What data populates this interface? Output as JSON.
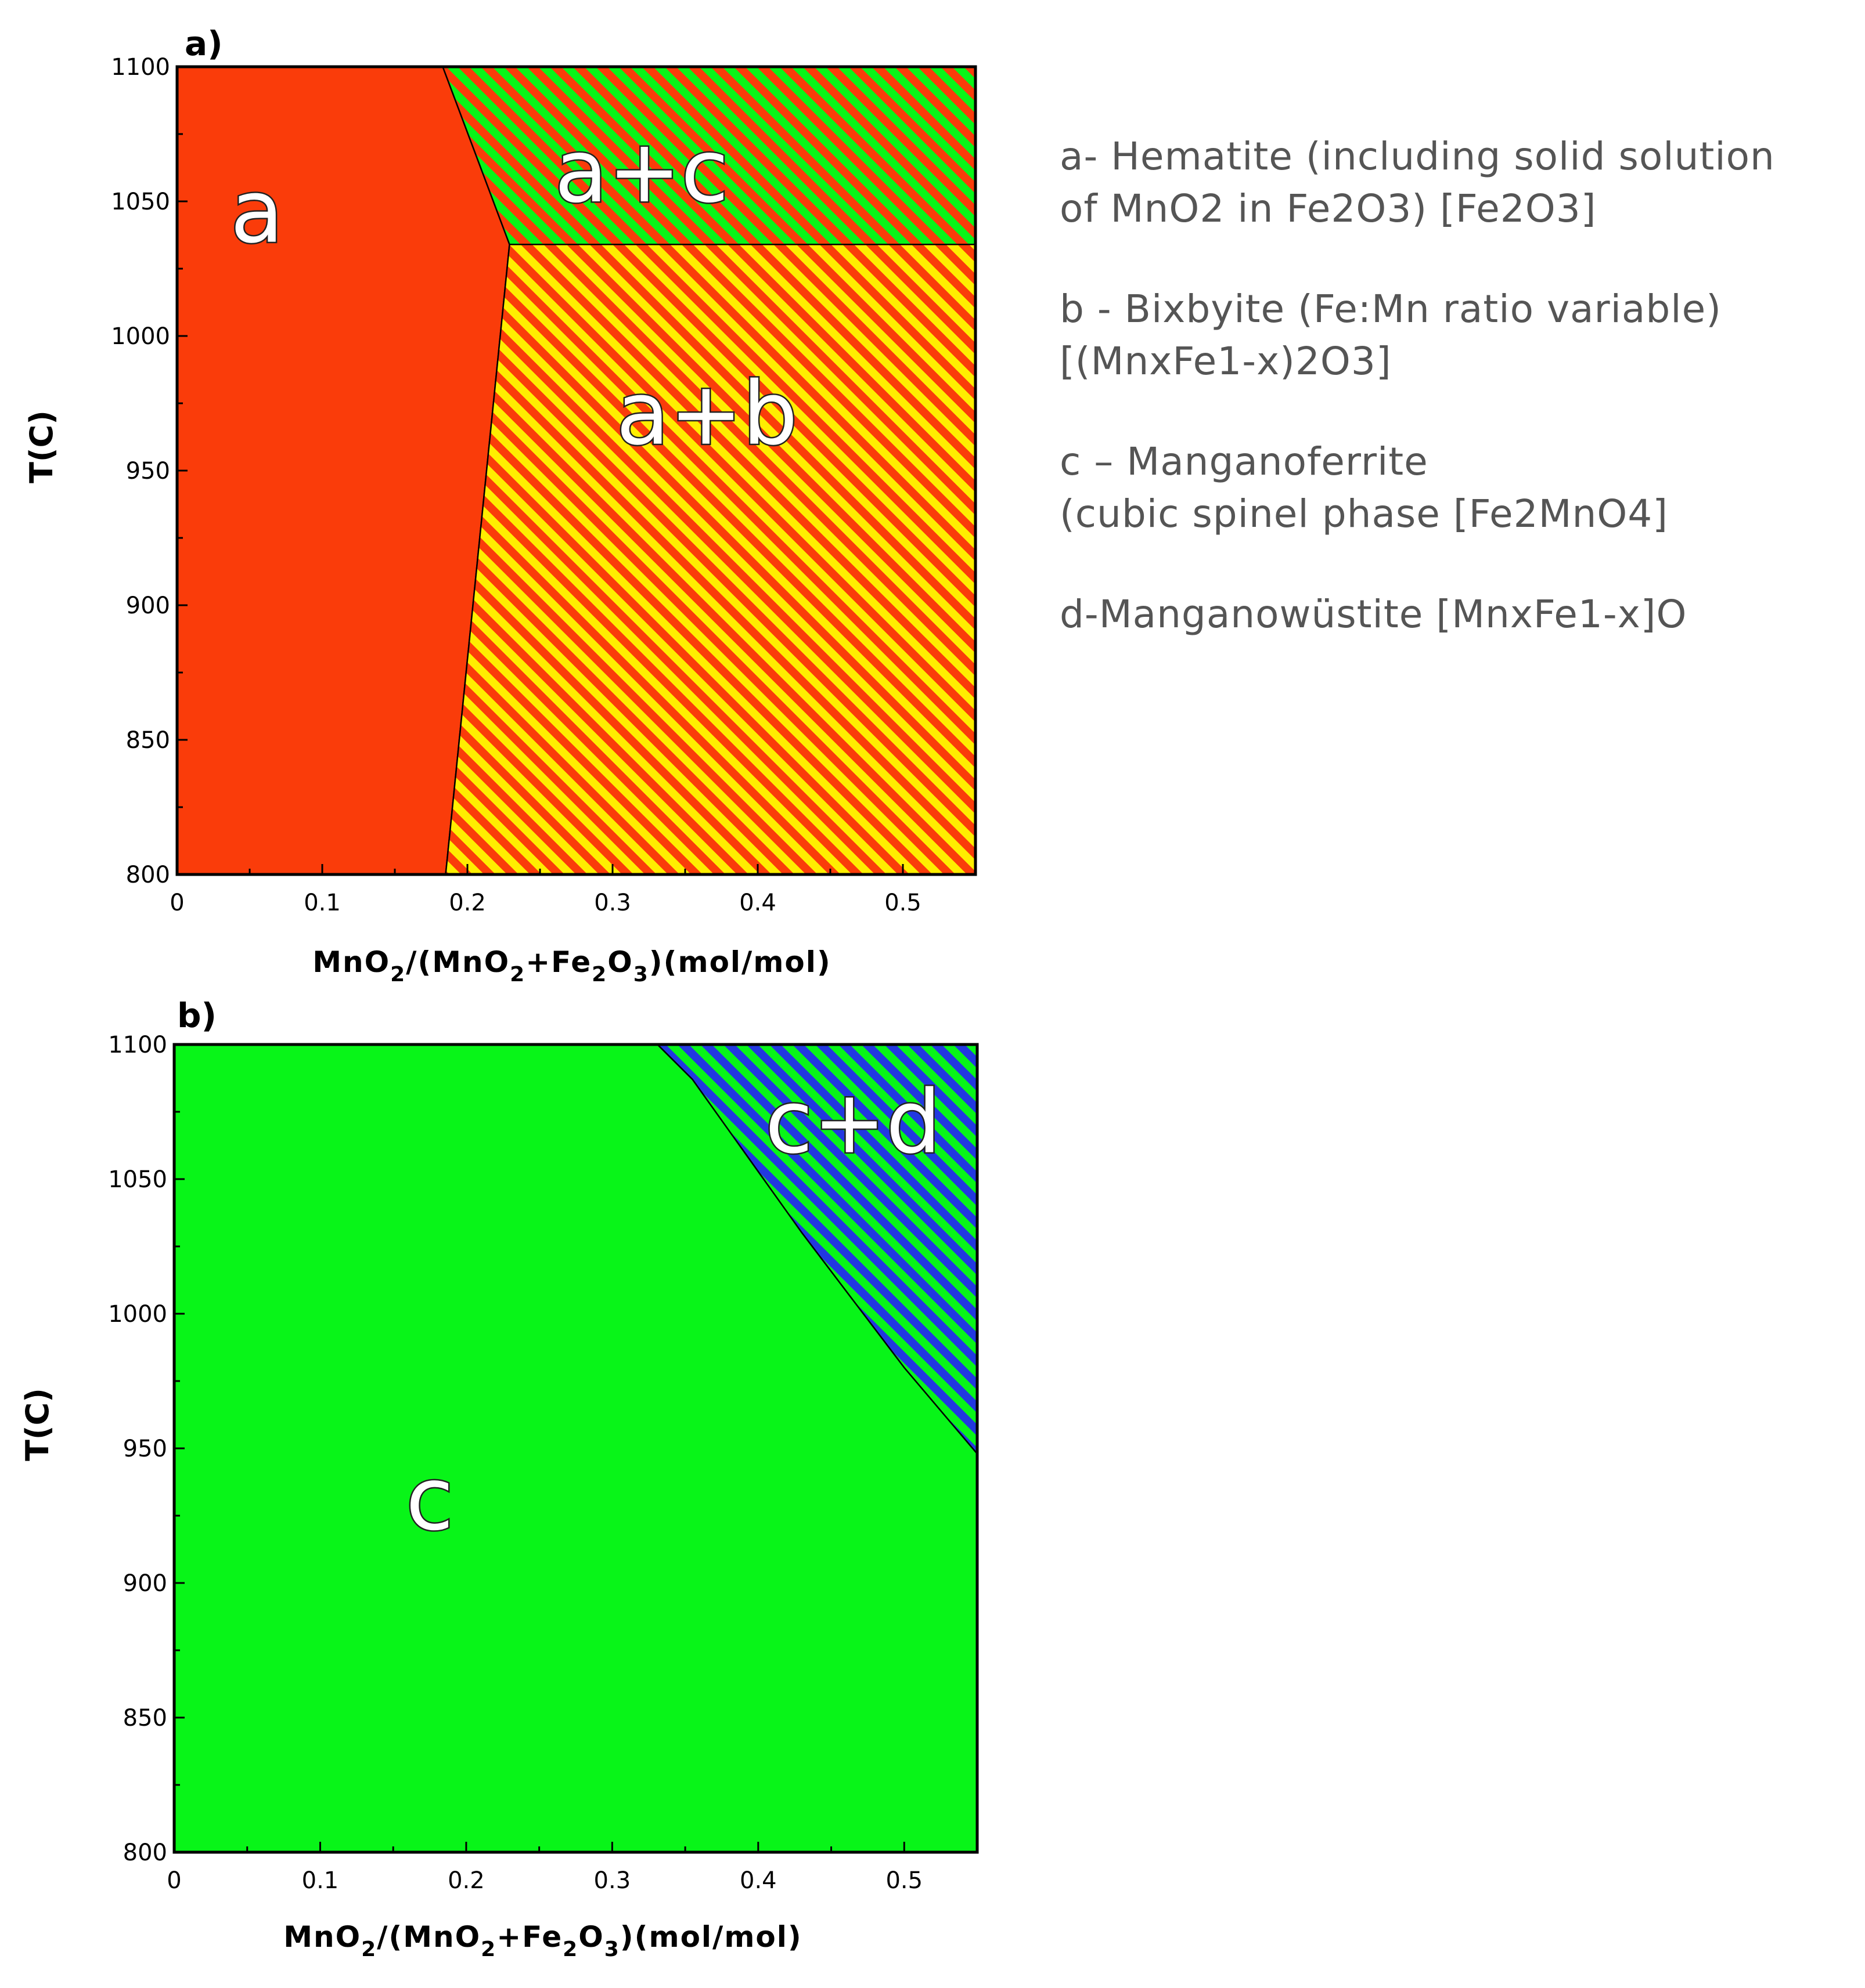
{
  "legend": {
    "a_line1": "a- Hematite  (including solid solution",
    "a_line2": "of MnO2 in Fe2O3) [Fe2O3]",
    "b_line1": "b - Bixbyite (Fe:Mn ratio variable)",
    "b_line2": "[(MnxFe1-x)2O3]",
    "c_line1": "c – Manganoferrite",
    "c_line2": "(cubic spinel phase [Fe2MnO4]",
    "d_line1": "d-Manganowüstite [MnxFe1-x]O"
  },
  "colors": {
    "phase_a": "#fa3c0a",
    "yellow": "#ffee00",
    "green": "#08f518",
    "blue": "#2238e0",
    "axis": "#000000",
    "label_fill": "#ffffff",
    "label_stroke": "#222222"
  },
  "chart_data": [
    {
      "type": "area",
      "panel_label": "a)",
      "xlabel": "MnO2/(MnO2+Fe2O3)(mol/mol)",
      "xlabel_parts": {
        "p1": "MnO",
        "s1": "2",
        "p2": "/(MnO",
        "s2": "2",
        "p3": "+Fe",
        "s3": "2",
        "p4": "O",
        "s4": "3",
        "p5": ")(mol/mol)"
      },
      "ylabel": "T(C)",
      "xlim": [
        0,
        0.55
      ],
      "ylim": [
        800,
        1100
      ],
      "xticks": [
        0,
        0.1,
        0.2,
        0.3,
        0.4,
        0.5
      ],
      "xtick_labels": [
        "0",
        "0.1",
        "0.2",
        "0.3",
        "0.4",
        "0.5"
      ],
      "yticks": [
        800,
        850,
        900,
        950,
        1000,
        1050,
        1100
      ],
      "ytick_labels": [
        "800",
        "850",
        "900",
        "950",
        "1000",
        "1050",
        "1100"
      ],
      "regions": [
        {
          "label": "a",
          "fill": "solid",
          "colors": [
            "#fa3c0a"
          ],
          "polygon": [
            [
              0,
              800
            ],
            [
              0,
              1100
            ],
            [
              0.183,
              1100
            ],
            [
              0.229,
              1034
            ],
            [
              0.185,
              800
            ]
          ],
          "label_at": [
            0.055,
            1035
          ]
        },
        {
          "label": "a+c",
          "fill": "stripes",
          "colors": [
            "#fa3c0a",
            "#08f518"
          ],
          "polygon": [
            [
              0.183,
              1100
            ],
            [
              0.55,
              1100
            ],
            [
              0.55,
              1034
            ],
            [
              0.229,
              1034
            ]
          ],
          "label_at": [
            0.32,
            1050
          ]
        },
        {
          "label": "a+b",
          "fill": "stripes",
          "colors": [
            "#fa3c0a",
            "#ffee00"
          ],
          "polygon": [
            [
              0.229,
              1034
            ],
            [
              0.55,
              1034
            ],
            [
              0.55,
              800
            ],
            [
              0.185,
              800
            ]
          ],
          "label_at": [
            0.365,
            960
          ]
        }
      ]
    },
    {
      "type": "area",
      "panel_label": "b)",
      "xlabel": "MnO2/(MnO2+Fe2O3)(mol/mol)",
      "xlabel_parts": {
        "p1": "MnO",
        "s1": "2",
        "p2": "/(MnO",
        "s2": "2",
        "p3": "+Fe",
        "s3": "2",
        "p4": "O",
        "s4": "3",
        "p5": ")(mol/mol)"
      },
      "ylabel": "T(C)",
      "xlim": [
        0,
        0.55
      ],
      "ylim": [
        800,
        1100
      ],
      "xticks": [
        0,
        0.1,
        0.2,
        0.3,
        0.4,
        0.5
      ],
      "xtick_labels": [
        "0",
        "0.1",
        "0.2",
        "0.3",
        "0.4",
        "0.5"
      ],
      "yticks": [
        800,
        850,
        900,
        950,
        1000,
        1050,
        1100
      ],
      "ytick_labels": [
        "800",
        "850",
        "900",
        "950",
        "1000",
        "1050",
        "1100"
      ],
      "regions": [
        {
          "label": "c",
          "fill": "solid",
          "colors": [
            "#08f518"
          ],
          "polygon": [
            [
              0,
              800
            ],
            [
              0,
              1100
            ],
            [
              0.331,
              1100
            ],
            [
              0.355,
              1087
            ],
            [
              0.43,
              1030
            ],
            [
              0.5,
              980
            ],
            [
              0.55,
              948
            ],
            [
              0.55,
              800
            ]
          ],
          "label_at": [
            0.175,
            920
          ]
        },
        {
          "label": "c+d",
          "fill": "stripes",
          "colors": [
            "#2238e0",
            "#08f518"
          ],
          "polygon": [
            [
              0.331,
              1100
            ],
            [
              0.55,
              1100
            ],
            [
              0.55,
              948
            ],
            [
              0.5,
              980
            ],
            [
              0.43,
              1030
            ],
            [
              0.355,
              1087
            ]
          ],
          "label_at": [
            0.465,
            1060
          ]
        }
      ]
    }
  ]
}
